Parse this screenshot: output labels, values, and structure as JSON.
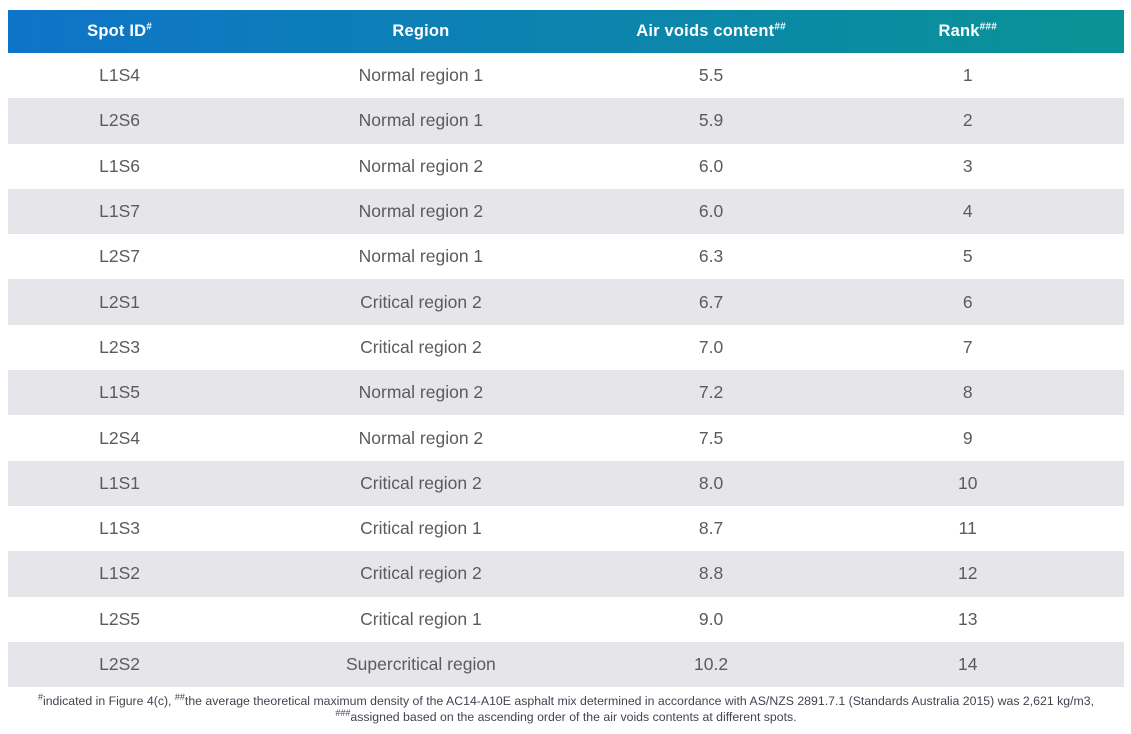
{
  "table": {
    "columns": [
      {
        "label": "Spot ID",
        "sup": "#"
      },
      {
        "label": "Region",
        "sup": ""
      },
      {
        "label": "Air voids content",
        "sup": "##"
      },
      {
        "label": "Rank",
        "sup": "###"
      }
    ],
    "rows": [
      [
        "L1S4",
        "Normal region 1",
        "5.5",
        "1"
      ],
      [
        "L2S6",
        "Normal region 1",
        "5.9",
        "2"
      ],
      [
        "L1S6",
        "Normal region 2",
        "6.0",
        "3"
      ],
      [
        "L1S7",
        "Normal region 2",
        "6.0",
        "4"
      ],
      [
        "L2S7",
        "Normal region 1",
        "6.3",
        "5"
      ],
      [
        "L2S1",
        "Critical region 2",
        "6.7",
        "6"
      ],
      [
        "L2S3",
        "Critical region 2",
        "7.0",
        "7"
      ],
      [
        "L1S5",
        "Normal region 2",
        "7.2",
        "8"
      ],
      [
        "L2S4",
        "Normal region 2",
        "7.5",
        "9"
      ],
      [
        "L1S1",
        "Critical region 2",
        "8.0",
        "10"
      ],
      [
        "L1S3",
        "Critical region 1",
        "8.7",
        "11"
      ],
      [
        "L1S2",
        "Critical region 2",
        "8.8",
        "12"
      ],
      [
        "L2S5",
        "Critical region 1",
        "9.0",
        "13"
      ],
      [
        "L2S2",
        "Supercritical region",
        "10.2",
        "14"
      ]
    ]
  },
  "footnote": {
    "parts": [
      {
        "sup": "#",
        "text": "indicated in Figure 4(c), "
      },
      {
        "sup": "##",
        "text": "the average theoretical maximum density of the AC14-A10E asphalt mix determined in accordance with AS/NZS 2891.7.1 (Standards Australia 2015) was 2,621 kg/m3, "
      },
      {
        "sup": "###",
        "text": "assigned based on the ascending order of the air voids contents at different spots."
      }
    ]
  },
  "colors": {
    "header_gradient_start": "#0e74c8",
    "header_gradient_end": "#0a9394",
    "header_text": "#ffffff",
    "row_stripe": "#e6e6ea",
    "row_plain": "#ffffff",
    "body_text": "#595b60",
    "footnote_text": "#3f4450"
  }
}
